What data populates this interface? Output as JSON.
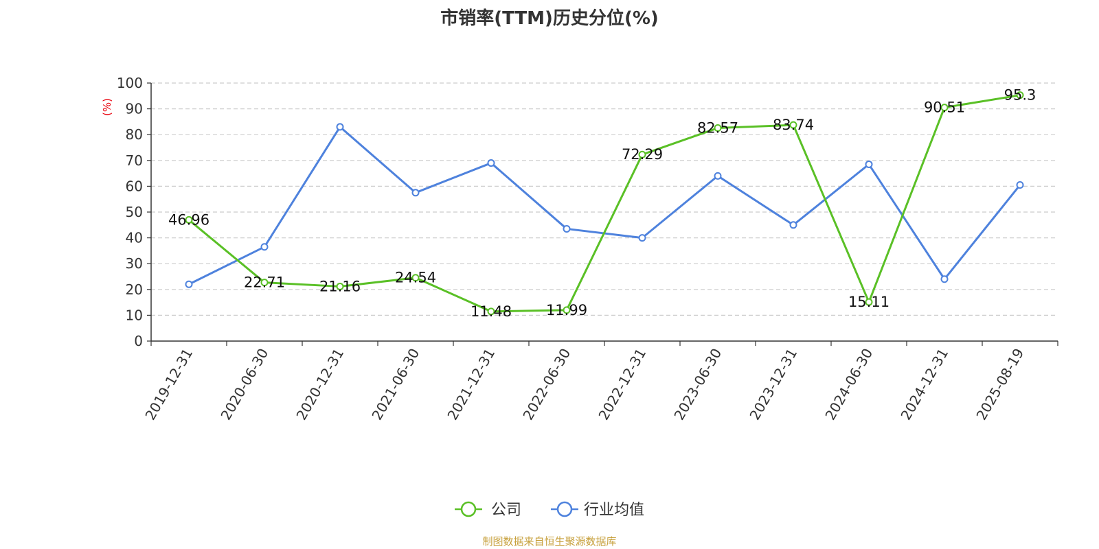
{
  "chart_data": {
    "type": "line",
    "title": "市销率(TTM)历史分位(%)",
    "ylabel": "(%)",
    "xlabel": "",
    "ylim": [
      0,
      100
    ],
    "yticks": [
      0,
      10,
      20,
      30,
      40,
      50,
      60,
      70,
      80,
      90,
      100
    ],
    "grid": true,
    "legend_position": "bottom-center",
    "categories": [
      "2019-12-31",
      "2020-06-30",
      "2020-12-31",
      "2021-06-30",
      "2021-12-31",
      "2022-06-30",
      "2022-12-31",
      "2023-06-30",
      "2023-12-31",
      "2024-06-30",
      "2024-12-31",
      "2025-08-19"
    ],
    "series": [
      {
        "name": "公司",
        "color": "#5ac026",
        "show_labels": true,
        "values": [
          46.96,
          22.71,
          21.16,
          24.54,
          11.48,
          11.99,
          72.29,
          82.57,
          83.74,
          15.11,
          90.51,
          95.3
        ],
        "labels": [
          "46.96",
          "22.71",
          "21.16",
          "24.54",
          "11.48",
          "11.99",
          "72.29",
          "82.57",
          "83.74",
          "15.11",
          "90.51",
          "95.3"
        ]
      },
      {
        "name": "行业均值",
        "color": "#4e82dd",
        "show_labels": false,
        "values": [
          22,
          36.5,
          83,
          57.5,
          69,
          43.5,
          40,
          64,
          45,
          68.5,
          24,
          60.5
        ]
      }
    ],
    "unit_color": "#e8000b",
    "source": "制图数据来自恒生聚源数据库"
  }
}
